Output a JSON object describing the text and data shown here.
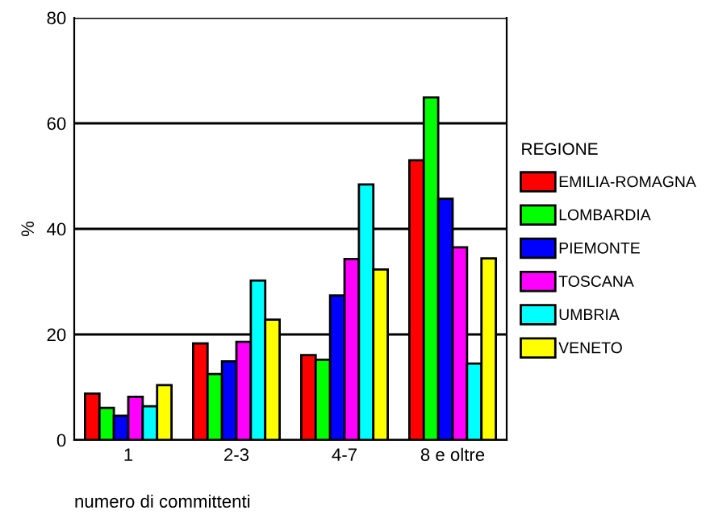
{
  "chart_data": {
    "type": "bar",
    "xlabel": "numero di committenti",
    "ylabel": "%",
    "legend_title": "REGIONE",
    "legend": "right",
    "categories": [
      "1",
      "2-3",
      "4-7",
      "8 e oltre"
    ],
    "series": [
      {
        "name": "EMILIA-ROMAGNA",
        "color": "#ff0000",
        "values": [
          8.8,
          18.3,
          16.1,
          53.0
        ]
      },
      {
        "name": "LOMBARDIA",
        "color": "#00ff00",
        "values": [
          6.1,
          12.5,
          15.2,
          64.9
        ]
      },
      {
        "name": "PIEMONTE",
        "color": "#0000ff",
        "values": [
          4.6,
          14.9,
          27.4,
          45.7
        ]
      },
      {
        "name": "TOSCANA",
        "color": "#ff00ff",
        "values": [
          8.2,
          18.6,
          34.3,
          36.5
        ]
      },
      {
        "name": "UMBRIA",
        "color": "#00ffff",
        "values": [
          6.4,
          30.2,
          48.4,
          14.5
        ]
      },
      {
        "name": "VENETO",
        "color": "#ffff00",
        "values": [
          10.4,
          22.8,
          32.3,
          34.4
        ]
      }
    ],
    "ylim": [
      0,
      80
    ],
    "yticks": [
      0,
      20,
      40,
      60,
      80
    ],
    "grid": "y"
  }
}
